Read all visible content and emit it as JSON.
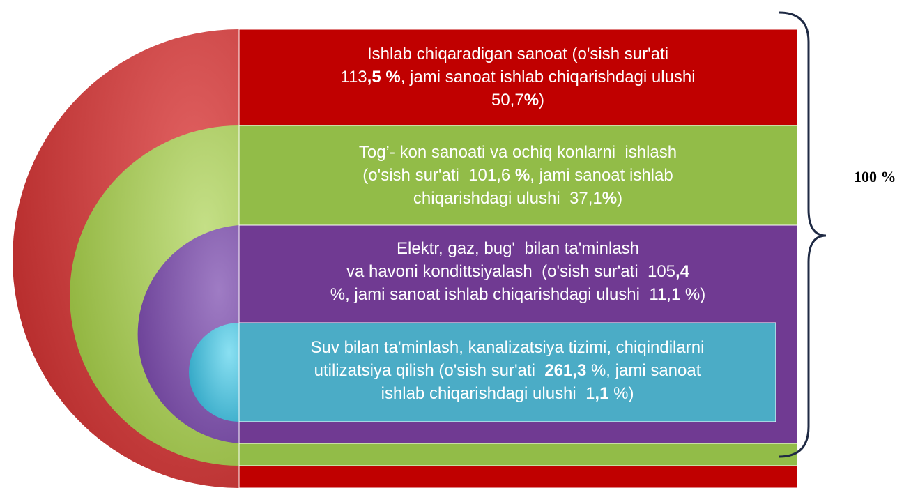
{
  "blocks": [
    {
      "lines": [
        [
          {
            "text": "Ishlab chiqaradigan sanoat (o'sish sur'ati",
            "bold": false
          }
        ],
        [
          {
            "text": "113",
            "bold": false
          },
          {
            "text": ",5 %",
            "bold": true
          },
          {
            "text": ", jami sanoat ishlab chiqarishdagi ulushi",
            "bold": false
          }
        ],
        [
          {
            "text": "50,7",
            "bold": false
          },
          {
            "text": "%",
            "bold": true
          },
          {
            "text": ")",
            "bold": false
          }
        ]
      ]
    },
    {
      "lines": [
        [
          {
            "text": "Tog’- kon sanoati va ochiq konlarni  ishlash",
            "bold": false
          }
        ],
        [
          {
            "text": "(o'sish sur'ati  101,6 ",
            "bold": false
          },
          {
            "text": "%",
            "bold": true
          },
          {
            "text": ", jami sanoat ishlab",
            "bold": false
          }
        ],
        [
          {
            "text": "chiqarishdagi ulushi  37,1",
            "bold": false
          },
          {
            "text": "%",
            "bold": true
          },
          {
            "text": ")",
            "bold": false
          }
        ]
      ]
    },
    {
      "lines": [
        [
          {
            "text": "Elektr, gaz, bug'  bilan ta'minlash",
            "bold": false
          }
        ],
        [
          {
            "text": "va havoni kondittsiyalash  (o'sish sur'ati  105",
            "bold": false
          },
          {
            "text": ",4",
            "bold": true
          }
        ],
        [
          {
            "text": "%, jami sanoat ishlab chiqarishdagi ulushi  11,1 %)",
            "bold": false
          }
        ]
      ]
    },
    {
      "lines": [
        [
          {
            "text": "Suv bilan ta'minlash, kanalizatsiya tizimi, chiqindilarni",
            "bold": false
          }
        ],
        [
          {
            "text": "utilizatsiya qilish (o'sish sur'ati  ",
            "bold": false
          },
          {
            "text": "261,3",
            "bold": true
          },
          {
            "text": " %, jami sanoat",
            "bold": false
          }
        ],
        [
          {
            "text": "ishlab chiqarishdagi ulushi  1",
            "bold": false
          },
          {
            "text": ",1",
            "bold": true
          },
          {
            "text": " %)",
            "bold": false
          }
        ]
      ]
    }
  ],
  "total": "100 %"
}
